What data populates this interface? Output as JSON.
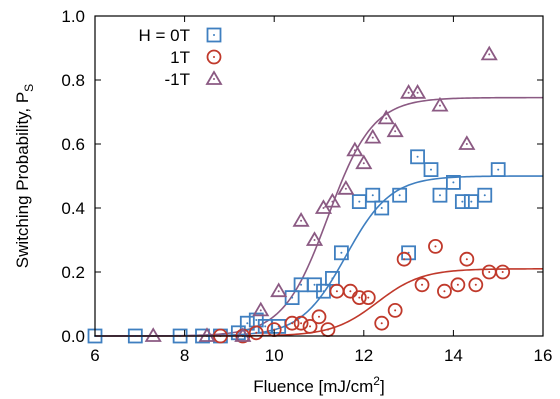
{
  "chart_data": {
    "type": "scatter",
    "xlabel": "Fluence [mJ/cm",
    "xlabel_sup": "2",
    "xlabel_close": "]",
    "ylabel": "Switching Probability, P",
    "ylabel_sub": "S",
    "xlim": [
      6,
      16
    ],
    "ylim": [
      0,
      1.0
    ],
    "x_ticks": [
      6,
      8,
      10,
      12,
      14,
      16
    ],
    "x_tick_labels": [
      "6",
      "8",
      "10",
      "12",
      "14",
      "16"
    ],
    "y_ticks": [
      0,
      0.2,
      0.4,
      0.6,
      0.8,
      1.0
    ],
    "y_tick_labels": [
      "0.0",
      "0.2",
      "0.4",
      "0.6",
      "0.8",
      "1.0"
    ],
    "grid": false,
    "legend_placement": "top-left",
    "series": [
      {
        "name": "H = 0T",
        "marker": "square",
        "color": "#3f7fc0",
        "points": [
          [
            6.0,
            0.0
          ],
          [
            6.9,
            0.0
          ],
          [
            7.9,
            0.0
          ],
          [
            8.4,
            0.0
          ],
          [
            8.8,
            0.0
          ],
          [
            9.2,
            0.01
          ],
          [
            9.4,
            0.04
          ],
          [
            9.6,
            0.05
          ],
          [
            9.8,
            0.03
          ],
          [
            10.1,
            0.03
          ],
          [
            10.4,
            0.12
          ],
          [
            10.6,
            0.16
          ],
          [
            10.9,
            0.16
          ],
          [
            11.1,
            0.14
          ],
          [
            11.3,
            0.18
          ],
          [
            11.5,
            0.26
          ],
          [
            11.9,
            0.42
          ],
          [
            12.2,
            0.44
          ],
          [
            12.4,
            0.4
          ],
          [
            12.8,
            0.44
          ],
          [
            13.0,
            0.26
          ],
          [
            13.2,
            0.56
          ],
          [
            13.5,
            0.52
          ],
          [
            13.7,
            0.44
          ],
          [
            14.0,
            0.48
          ],
          [
            14.2,
            0.42
          ],
          [
            14.4,
            0.42
          ],
          [
            14.7,
            0.44
          ],
          [
            15.0,
            0.52
          ]
        ],
        "fit": {
          "amplitude": 0.5,
          "center": 11.6,
          "width": 0.5
        }
      },
      {
        "name": "1T",
        "marker": "circle",
        "color": "#c0392b",
        "points": [
          [
            8.8,
            0.0
          ],
          [
            9.3,
            0.0
          ],
          [
            9.6,
            0.01
          ],
          [
            10.0,
            0.02
          ],
          [
            10.4,
            0.04
          ],
          [
            10.6,
            0.04
          ],
          [
            10.8,
            0.03
          ],
          [
            11.0,
            0.06
          ],
          [
            11.2,
            0.02
          ],
          [
            11.4,
            0.14
          ],
          [
            11.7,
            0.14
          ],
          [
            11.9,
            0.12
          ],
          [
            12.1,
            0.12
          ],
          [
            12.4,
            0.04
          ],
          [
            12.7,
            0.08
          ],
          [
            12.9,
            0.24
          ],
          [
            13.3,
            0.16
          ],
          [
            13.6,
            0.28
          ],
          [
            13.8,
            0.14
          ],
          [
            14.1,
            0.16
          ],
          [
            14.3,
            0.24
          ],
          [
            14.5,
            0.16
          ],
          [
            14.8,
            0.2
          ],
          [
            15.1,
            0.2
          ]
        ],
        "fit": {
          "amplitude": 0.21,
          "center": 12.3,
          "width": 0.5
        }
      },
      {
        "name": "-1T",
        "marker": "triangle",
        "color": "#8b5a83",
        "points": [
          [
            7.3,
            0.0
          ],
          [
            8.5,
            0.0
          ],
          [
            9.3,
            0.0
          ],
          [
            9.7,
            0.08
          ],
          [
            10.1,
            0.14
          ],
          [
            10.6,
            0.36
          ],
          [
            10.9,
            0.3
          ],
          [
            11.1,
            0.4
          ],
          [
            11.3,
            0.42
          ],
          [
            11.6,
            0.46
          ],
          [
            11.8,
            0.58
          ],
          [
            12.0,
            0.54
          ],
          [
            12.2,
            0.62
          ],
          [
            12.5,
            0.68
          ],
          [
            12.7,
            0.64
          ],
          [
            13.0,
            0.76
          ],
          [
            13.2,
            0.76
          ],
          [
            13.7,
            0.72
          ],
          [
            14.3,
            0.6
          ],
          [
            14.8,
            0.88
          ]
        ],
        "fit": {
          "amplitude": 0.745,
          "center": 11.2,
          "width": 0.5
        }
      }
    ]
  }
}
